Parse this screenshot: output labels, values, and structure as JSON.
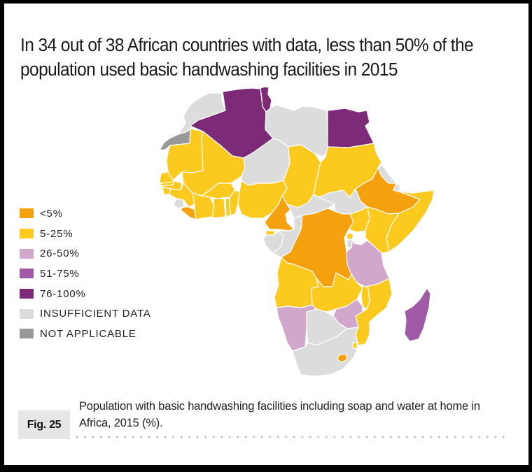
{
  "chart_data": {
    "type": "choropleth-map",
    "title": "In 34 out of 38 African countries with data, less than 50% of the population used basic handwashing facilities in 2015",
    "region": "Africa",
    "year": 2015,
    "legend": {
      "placement": "left",
      "items": [
        {
          "key": "lt5",
          "label": "<5%",
          "color": "#f5a00f"
        },
        {
          "key": "5to25",
          "label": "5-25%",
          "color": "#fcc91f"
        },
        {
          "key": "26to50",
          "label": "26-50%",
          "color": "#d2a7cc"
        },
        {
          "key": "51to75",
          "label": "51-75%",
          "color": "#a05aa6"
        },
        {
          "key": "76to100",
          "label": "76-100%",
          "color": "#7d2a78"
        },
        {
          "key": "insufficient",
          "label": "INSUFFICIENT DATA",
          "color": "#dcdcdc"
        },
        {
          "key": "na",
          "label": "NOT APPLICABLE",
          "color": "#999999"
        }
      ]
    },
    "countries": {
      "Morocco": "insufficient",
      "Western Sahara": "na",
      "Algeria": "76to100",
      "Tunisia": "76to100",
      "Libya": "insufficient",
      "Egypt": "76to100",
      "Mauritania": "5to25",
      "Mali": "5to25",
      "Niger": "insufficient",
      "Chad": "5to25",
      "Sudan": "5to25",
      "Eritrea": "insufficient",
      "Djibouti": "insufficient",
      "Ethiopia": "lt5",
      "Somalia": "5to25",
      "Senegal": "5to25",
      "Gambia": "5to25",
      "Guinea-Bissau": "5to25",
      "Guinea": "5to25",
      "Sierra Leone": "insufficient",
      "Liberia": "lt5",
      "Cote d'Ivoire": "5to25",
      "Burkina Faso": "5to25",
      "Ghana": "5to25",
      "Togo": "5to25",
      "Benin": "5to25",
      "Nigeria": "5to25",
      "Cameroon": "lt5",
      "Central African Republic": "insufficient",
      "South Sudan": "insufficient",
      "Equatorial Guinea": "5to25",
      "Gabon": "insufficient",
      "Congo": "insufficient",
      "DR Congo": "lt5",
      "Uganda": "5to25",
      "Kenya": "5to25",
      "Rwanda": "5to25",
      "Burundi": "insufficient",
      "Tanzania": "26to50",
      "Angola": "5to25",
      "Zambia": "5to25",
      "Malawi": "5to25",
      "Mozambique": "5to25",
      "Zimbabwe": "26to50",
      "Namibia": "26to50",
      "Botswana": "insufficient",
      "South Africa": "insufficient",
      "Lesotho": "lt5",
      "Eswatini": "5to25",
      "Madagascar": "51to75"
    }
  },
  "caption": {
    "fig_label": "Fig. 25",
    "text": "Population with basic handwashing facilities including soap and water at home in Africa, 2015 (%)."
  }
}
